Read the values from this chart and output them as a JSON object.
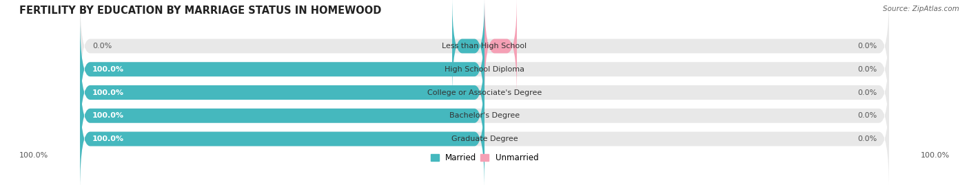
{
  "title": "FERTILITY BY EDUCATION BY MARRIAGE STATUS IN HOMEWOOD",
  "source": "Source: ZipAtlas.com",
  "categories": [
    "Less than High School",
    "High School Diploma",
    "College or Associate's Degree",
    "Bachelor's Degree",
    "Graduate Degree"
  ],
  "married_values": [
    0.0,
    100.0,
    100.0,
    100.0,
    100.0
  ],
  "unmarried_values": [
    0.0,
    0.0,
    0.0,
    0.0,
    0.0
  ],
  "married_color": "#45b8be",
  "unmarried_color": "#f5a0b5",
  "bar_bg_color": "#e8e8e8",
  "bar_height": 0.62,
  "fig_width": 14.06,
  "fig_height": 2.69,
  "title_fontsize": 10.5,
  "label_fontsize": 8.0,
  "legend_fontsize": 8.5,
  "source_fontsize": 7.5,
  "axis_label_left": "100.0%",
  "axis_label_right": "100.0%"
}
